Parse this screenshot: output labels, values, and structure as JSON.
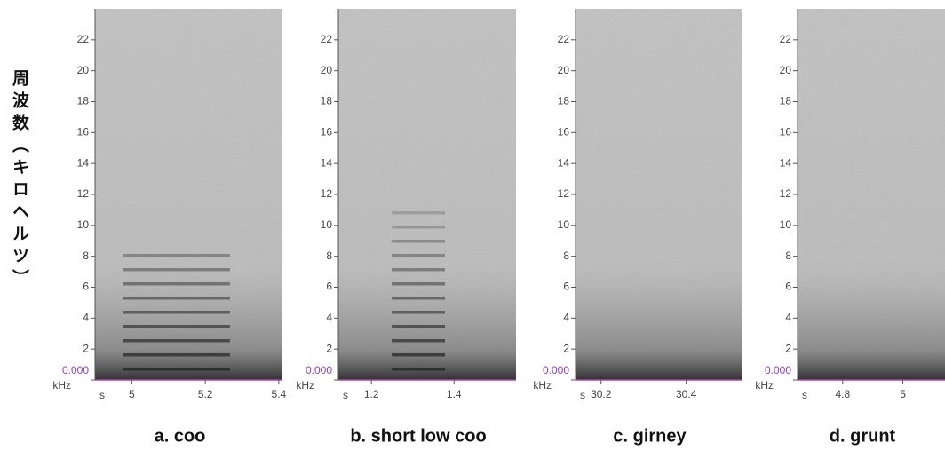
{
  "y_label": "周波数（キロヘルツ）",
  "chart_data": [
    {
      "type": "spectrogram",
      "title": "a. coo",
      "y_unit": "kHz",
      "x_unit": "s",
      "ylim": [
        0,
        24
      ],
      "yticks": [
        {
          "value": 0,
          "label": "0.000"
        },
        2,
        4,
        6,
        8,
        10,
        12,
        14,
        16,
        18,
        20,
        22
      ],
      "xlim": [
        4.9,
        5.41
      ],
      "xticks": [
        5,
        5.2,
        5.4
      ]
    },
    {
      "type": "spectrogram",
      "title": "b. short low coo",
      "y_unit": "kHz",
      "x_unit": "s",
      "ylim": [
        0,
        24
      ],
      "yticks": [
        {
          "value": 0,
          "label": "0.000"
        },
        2,
        4,
        6,
        8,
        10,
        12,
        14,
        16,
        18,
        20,
        22
      ],
      "xlim": [
        1.12,
        1.55
      ],
      "xticks": [
        1.2,
        1.4
      ]
    },
    {
      "type": "spectrogram",
      "title": "c. girney",
      "y_unit": "kHz",
      "x_unit": "s",
      "ylim": [
        0,
        24
      ],
      "yticks": [
        {
          "value": 0,
          "label": "0.000"
        },
        2,
        4,
        6,
        8,
        10,
        12,
        14,
        16,
        18,
        20,
        22
      ],
      "xlim": [
        30.14,
        30.53
      ],
      "xticks": [
        30.2,
        30.4
      ]
    },
    {
      "type": "spectrogram",
      "title": "d. grunt",
      "y_unit": "kHz",
      "x_unit": "s",
      "ylim": [
        0,
        24
      ],
      "yticks": [
        {
          "value": 0,
          "label": "0.000"
        },
        2,
        4,
        6,
        8,
        10,
        12,
        14,
        16,
        18,
        20,
        22
      ],
      "xlim": [
        4.65,
        5.14
      ],
      "xticks": [
        4.8,
        5
      ]
    }
  ]
}
